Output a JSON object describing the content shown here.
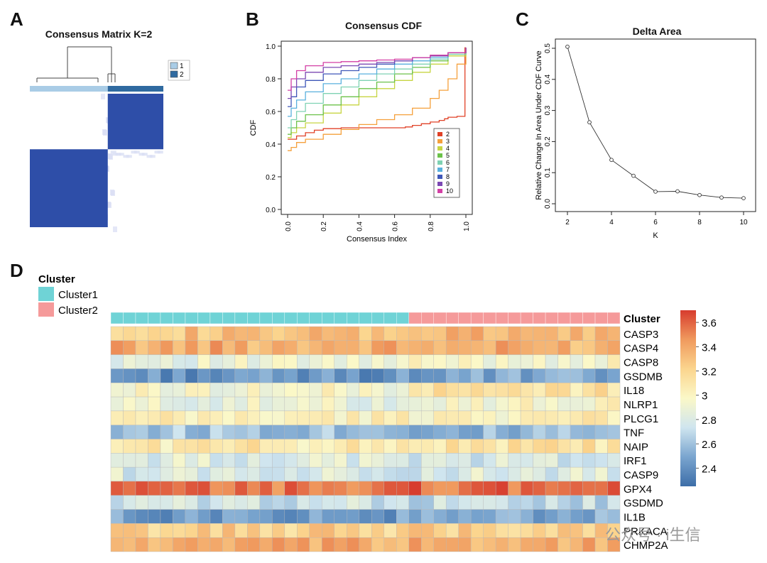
{
  "panels": {
    "a": "A",
    "b": "B",
    "c": "C",
    "d": "D"
  },
  "chart_data": [
    {
      "type": "heatmap",
      "panel": "A",
      "title": "Consensus Matrix K=2",
      "legend": [
        {
          "label": "1",
          "color": "#a9cce6"
        },
        {
          "label": "2",
          "color": "#2f6aa0"
        }
      ],
      "cluster_sizes": [
        108,
        77
      ],
      "block_color": "#2e4ea8",
      "background_color": "#ffffff"
    },
    {
      "type": "line",
      "panel": "B",
      "title": "Consensus CDF",
      "xlabel": "Consensus Index",
      "ylabel": "CDF",
      "xlim": [
        0,
        1
      ],
      "ylim": [
        0,
        1
      ],
      "xticks": [
        "0.0",
        "0.2",
        "0.4",
        "0.6",
        "0.8",
        "1.0"
      ],
      "yticks": [
        "0.0",
        "0.2",
        "0.4",
        "0.6",
        "0.8",
        "1.0"
      ],
      "legend_position": "bottom-right",
      "series": [
        {
          "name": "2",
          "color": "#e04127",
          "x": [
            0,
            0.02,
            0.05,
            0.1,
            0.15,
            0.2,
            0.3,
            0.4,
            0.5,
            0.6,
            0.66,
            0.7,
            0.75,
            0.8,
            0.85,
            0.88,
            0.9,
            0.95,
            0.99,
            0.995,
            1.0
          ],
          "y": [
            0.43,
            0.43,
            0.45,
            0.47,
            0.485,
            0.495,
            0.5,
            0.5,
            0.5,
            0.5,
            0.505,
            0.515,
            0.525,
            0.535,
            0.545,
            0.555,
            0.565,
            0.57,
            0.57,
            0.99,
            0.99
          ]
        },
        {
          "name": "3",
          "color": "#f5a03b",
          "x": [
            0,
            0.02,
            0.05,
            0.1,
            0.2,
            0.3,
            0.4,
            0.5,
            0.6,
            0.7,
            0.8,
            0.85,
            0.9,
            0.95,
            1.0
          ],
          "y": [
            0.36,
            0.38,
            0.41,
            0.43,
            0.46,
            0.49,
            0.52,
            0.55,
            0.58,
            0.62,
            0.68,
            0.73,
            0.8,
            0.89,
            0.99
          ]
        },
        {
          "name": "4",
          "color": "#c7d543",
          "x": [
            0,
            0.02,
            0.05,
            0.1,
            0.2,
            0.3,
            0.4,
            0.5,
            0.6,
            0.7,
            0.8,
            0.9,
            1.0
          ],
          "y": [
            0.44,
            0.47,
            0.5,
            0.53,
            0.59,
            0.64,
            0.69,
            0.74,
            0.79,
            0.84,
            0.89,
            0.94,
            0.99
          ]
        },
        {
          "name": "5",
          "color": "#6cc24a",
          "x": [
            0,
            0.02,
            0.05,
            0.1,
            0.2,
            0.3,
            0.4,
            0.5,
            0.6,
            0.7,
            0.8,
            0.9,
            1.0
          ],
          "y": [
            0.46,
            0.5,
            0.54,
            0.58,
            0.64,
            0.69,
            0.74,
            0.78,
            0.83,
            0.87,
            0.91,
            0.95,
            0.99
          ]
        },
        {
          "name": "6",
          "color": "#7fd2b3",
          "x": [
            0,
            0.02,
            0.05,
            0.1,
            0.2,
            0.3,
            0.4,
            0.5,
            0.6,
            0.7,
            0.8,
            0.9,
            1.0
          ],
          "y": [
            0.5,
            0.55,
            0.6,
            0.65,
            0.71,
            0.75,
            0.79,
            0.83,
            0.86,
            0.89,
            0.92,
            0.95,
            0.99
          ]
        },
        {
          "name": "7",
          "color": "#59b0de",
          "x": [
            0,
            0.02,
            0.05,
            0.1,
            0.2,
            0.3,
            0.4,
            0.5,
            0.6,
            0.7,
            0.8,
            0.9,
            1.0
          ],
          "y": [
            0.57,
            0.62,
            0.67,
            0.72,
            0.77,
            0.8,
            0.83,
            0.86,
            0.89,
            0.91,
            0.93,
            0.96,
            0.99
          ]
        },
        {
          "name": "8",
          "color": "#3f57b8",
          "x": [
            0,
            0.02,
            0.05,
            0.1,
            0.2,
            0.3,
            0.4,
            0.5,
            0.6,
            0.7,
            0.8,
            0.9,
            1.0
          ],
          "y": [
            0.63,
            0.69,
            0.75,
            0.79,
            0.83,
            0.85,
            0.87,
            0.89,
            0.91,
            0.93,
            0.94,
            0.96,
            0.99
          ]
        },
        {
          "name": "9",
          "color": "#7b48b3",
          "x": [
            0,
            0.02,
            0.05,
            0.1,
            0.2,
            0.3,
            0.4,
            0.5,
            0.6,
            0.7,
            0.8,
            0.9,
            1.0
          ],
          "y": [
            0.68,
            0.75,
            0.8,
            0.84,
            0.87,
            0.88,
            0.89,
            0.9,
            0.91,
            0.93,
            0.94,
            0.96,
            0.99
          ]
        },
        {
          "name": "10",
          "color": "#d33fa5",
          "x": [
            0,
            0.02,
            0.05,
            0.1,
            0.2,
            0.3,
            0.4,
            0.5,
            0.6,
            0.7,
            0.8,
            0.9,
            1.0
          ],
          "y": [
            0.73,
            0.8,
            0.85,
            0.88,
            0.9,
            0.905,
            0.91,
            0.915,
            0.92,
            0.93,
            0.945,
            0.96,
            0.99
          ]
        }
      ]
    },
    {
      "type": "line",
      "panel": "C",
      "title": "Delta Area",
      "xlabel": "K",
      "ylabel": "Relative Change In Area Under CDF Curve",
      "xlim": [
        2,
        10
      ],
      "ylim": [
        0,
        0.5
      ],
      "xticks": [
        "2",
        "4",
        "6",
        "8",
        "10"
      ],
      "yticks": [
        "0.0",
        "0.1",
        "0.2",
        "0.3",
        "0.4",
        "0.5"
      ],
      "x": [
        2,
        3,
        4,
        5,
        6,
        7,
        8,
        9,
        10
      ],
      "y": [
        0.505,
        0.262,
        0.141,
        0.09,
        0.039,
        0.04,
        0.028,
        0.02,
        0.018
      ]
    },
    {
      "type": "heatmap",
      "panel": "D",
      "annotation_title": "Cluster",
      "annotation_legend": [
        {
          "label": "Cluster1",
          "color": "#6fd3d6"
        },
        {
          "label": "Cluster2",
          "color": "#f59a9a"
        }
      ],
      "cluster_counts": [
        24,
        17
      ],
      "row_labels": [
        "CASP3",
        "CASP4",
        "CASP8",
        "GSDMB",
        "IL18",
        "NLRP1",
        "PLCG1",
        "TNF",
        "NAIP",
        "IRF1",
        "CASP9",
        "GPX4",
        "GSDMD",
        "IL1B",
        "PRKACA",
        "CHMP2A"
      ],
      "row_means_cluster1": [
        3.28,
        3.38,
        2.88,
        2.42,
        2.95,
        2.88,
        3.02,
        2.62,
        3.08,
        2.82,
        2.8,
        3.54,
        2.75,
        2.45,
        3.22,
        3.36
      ],
      "row_means_cluster2": [
        3.32,
        3.36,
        2.95,
        2.48,
        3.12,
        2.96,
        3.03,
        2.55,
        3.12,
        2.78,
        2.8,
        3.58,
        2.7,
        2.5,
        3.24,
        3.38
      ],
      "color_scale": {
        "min": 2.25,
        "max": 3.7,
        "stops": [
          "#3d6ea8",
          "#7aa5cf",
          "#cfe5ef",
          "#fbf8c8",
          "#fbd58e",
          "#f09a5e",
          "#d73c2e"
        ],
        "tick_labels": [
          "3.6",
          "3.4",
          "3.2",
          "3",
          "2.8",
          "2.6",
          "2.4"
        ],
        "tick_values": [
          3.6,
          3.4,
          3.2,
          3.0,
          2.8,
          2.6,
          2.4
        ]
      }
    }
  ],
  "watermark": {
    "text": "公众号 · i生信"
  }
}
